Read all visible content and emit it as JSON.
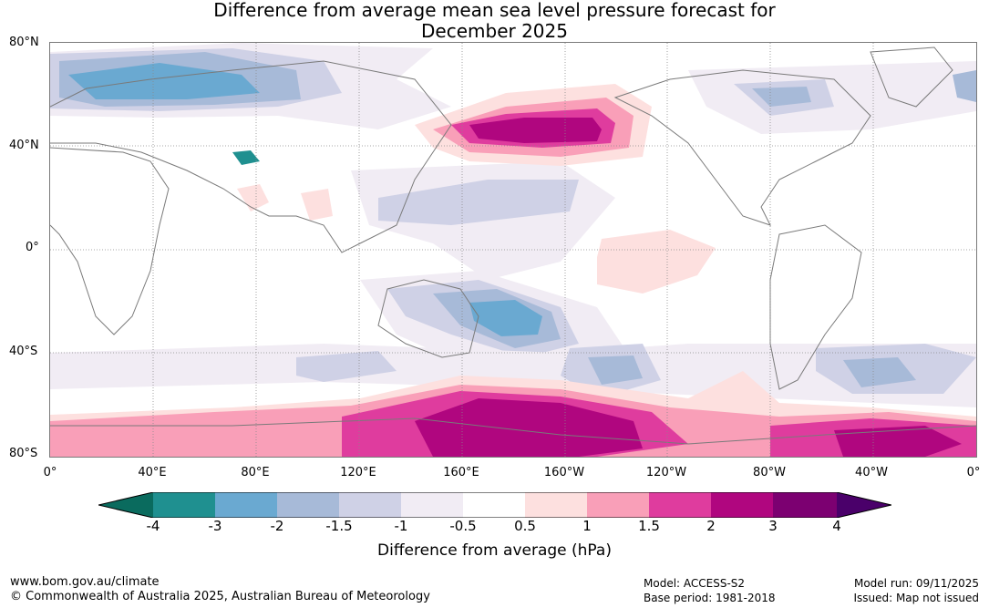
{
  "title_line1": "Difference from average mean sea level pressure forecast for",
  "title_line2": "December 2025",
  "lat_labels": [
    "80°N",
    "40°N",
    "0°",
    "40°S",
    "80°S"
  ],
  "lon_labels": [
    "0°",
    "40°E",
    "80°E",
    "120°E",
    "160°E",
    "160°W",
    "120°W",
    "80°W",
    "40°W",
    "0°"
  ],
  "colorbar": {
    "ticks": [
      "-4",
      "-3",
      "-2",
      "-1.5",
      "-1",
      "-0.5",
      "0.5",
      "1",
      "1.5",
      "2",
      "3",
      "4"
    ],
    "colors": {
      "below_-4": "#0a6b5e",
      "-4_-3": "#1f9090",
      "-3_-2": "#6aa9d1",
      "-2_-1.5": "#a7bad8",
      "-1.5_-1": "#cfd1e6",
      "-1_-0.5": "#f1ecf4",
      "-0.5_0.5": "#ffffff",
      "0.5_1": "#fde0df",
      "1_1.5": "#f99fb8",
      "1.5_2": "#df3c9e",
      "2_3": "#b0067f",
      "3_4": "#7c0071",
      "above_4": "#4a006a"
    },
    "label": "Difference from average (hPa)"
  },
  "footer": {
    "website": "www.bom.gov.au/climate",
    "copyright": "© Commonwealth of Australia 2025, Australian Bureau of Meteorology",
    "model": "Model: ACCESS-S2",
    "base_period": "Base period: 1981-2018",
    "model_run": "Model run: 09/11/2025",
    "issued": "Issued: Map not issued"
  }
}
